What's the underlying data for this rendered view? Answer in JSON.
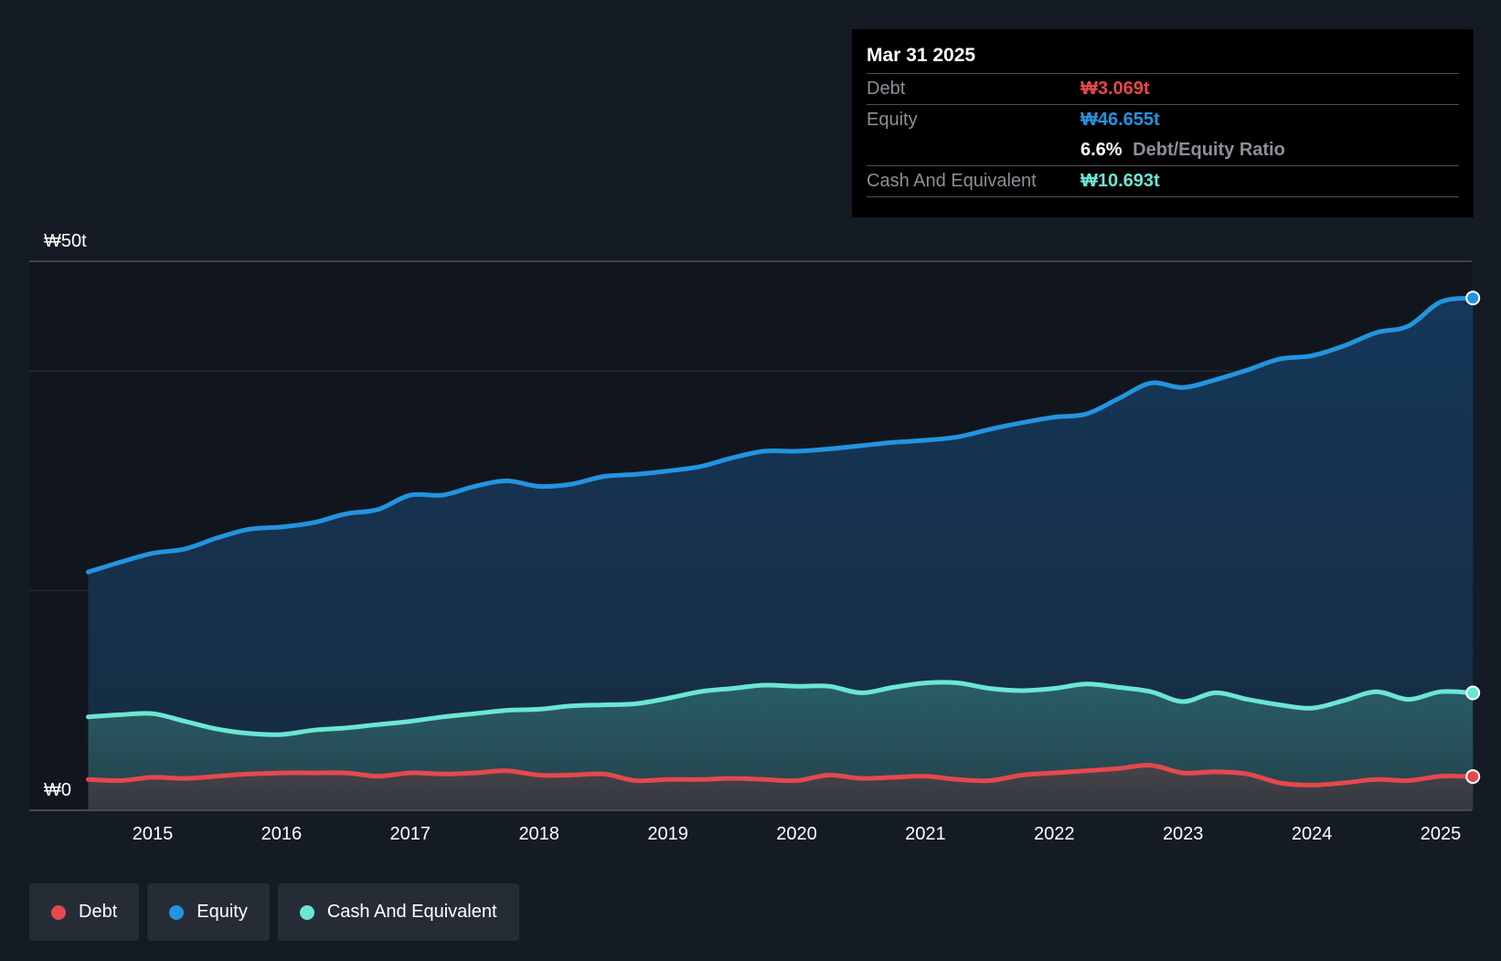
{
  "tooltip": {
    "date": "Mar 31 2025",
    "debt_label": "Debt",
    "debt_value": "₩3.069t",
    "equity_label": "Equity",
    "equity_value": "₩46.655t",
    "ratio_value": "6.6%",
    "ratio_label": "Debt/Equity Ratio",
    "cash_label": "Cash And Equivalent",
    "cash_value": "₩10.693t"
  },
  "legend": [
    {
      "label": "Debt",
      "color": "#e5484d"
    },
    {
      "label": "Equity",
      "color": "#2394df"
    },
    {
      "label": "Cash And Equivalent",
      "color": "#6ce6d4"
    }
  ],
  "chart_data": {
    "type": "area",
    "title": "",
    "xlabel": "",
    "ylabel": "",
    "ylim": [
      0,
      50
    ],
    "y_unit": "trillion KRW",
    "ytick_labels": [
      {
        "value": 50,
        "label": "₩50t"
      },
      {
        "value": 0,
        "label": "₩0"
      }
    ],
    "gridlines": [
      0,
      20,
      40,
      50
    ],
    "xlim": [
      2014.5,
      2025.25
    ],
    "xtick_labels": [
      "2015",
      "2016",
      "2017",
      "2018",
      "2019",
      "2020",
      "2021",
      "2022",
      "2023",
      "2024",
      "2025"
    ],
    "x": [
      2014.5,
      2014.75,
      2015.0,
      2015.25,
      2015.5,
      2015.75,
      2016.0,
      2016.25,
      2016.5,
      2016.75,
      2017.0,
      2017.25,
      2017.5,
      2017.75,
      2018.0,
      2018.25,
      2018.5,
      2018.75,
      2019.0,
      2019.25,
      2019.5,
      2019.75,
      2020.0,
      2020.25,
      2020.5,
      2020.75,
      2021.0,
      2021.25,
      2021.5,
      2021.75,
      2022.0,
      2022.25,
      2022.5,
      2022.75,
      2023.0,
      2023.25,
      2023.5,
      2023.75,
      2024.0,
      2024.25,
      2024.5,
      2024.75,
      2025.0,
      2025.25
    ],
    "series": [
      {
        "name": "Equity",
        "color": "#2394df",
        "values": [
          21.7,
          22.6,
          23.4,
          23.8,
          24.8,
          25.6,
          25.8,
          26.2,
          27.0,
          27.4,
          28.7,
          28.7,
          29.5,
          30.0,
          29.5,
          29.7,
          30.4,
          30.6,
          30.9,
          31.3,
          32.1,
          32.7,
          32.7,
          32.9,
          33.2,
          33.5,
          33.7,
          34.0,
          34.7,
          35.3,
          35.8,
          36.1,
          37.5,
          38.9,
          38.5,
          39.2,
          40.1,
          41.1,
          41.4,
          42.3,
          43.5,
          44.1,
          46.3,
          46.655
        ]
      },
      {
        "name": "Cash And Equivalent",
        "color": "#6ce6d4",
        "values": [
          8.5,
          8.7,
          8.8,
          8.1,
          7.4,
          7.0,
          6.9,
          7.3,
          7.5,
          7.8,
          8.1,
          8.5,
          8.8,
          9.1,
          9.2,
          9.5,
          9.6,
          9.7,
          10.2,
          10.8,
          11.1,
          11.4,
          11.3,
          11.3,
          10.7,
          11.2,
          11.6,
          11.6,
          11.1,
          10.9,
          11.1,
          11.5,
          11.2,
          10.8,
          9.9,
          10.7,
          10.1,
          9.6,
          9.3,
          10.0,
          10.8,
          10.1,
          10.8,
          10.693
        ]
      },
      {
        "name": "Debt",
        "color": "#e5484d",
        "values": [
          2.8,
          2.7,
          3.0,
          2.9,
          3.1,
          3.3,
          3.4,
          3.4,
          3.4,
          3.1,
          3.4,
          3.3,
          3.4,
          3.6,
          3.2,
          3.2,
          3.3,
          2.7,
          2.8,
          2.8,
          2.9,
          2.8,
          2.7,
          3.2,
          2.9,
          3.0,
          3.1,
          2.8,
          2.7,
          3.2,
          3.4,
          3.6,
          3.8,
          4.1,
          3.4,
          3.5,
          3.3,
          2.5,
          2.3,
          2.5,
          2.8,
          2.7,
          3.1,
          3.069
        ]
      }
    ],
    "legend_position": "bottom-left",
    "highlight_date": "Mar 31 2025"
  }
}
